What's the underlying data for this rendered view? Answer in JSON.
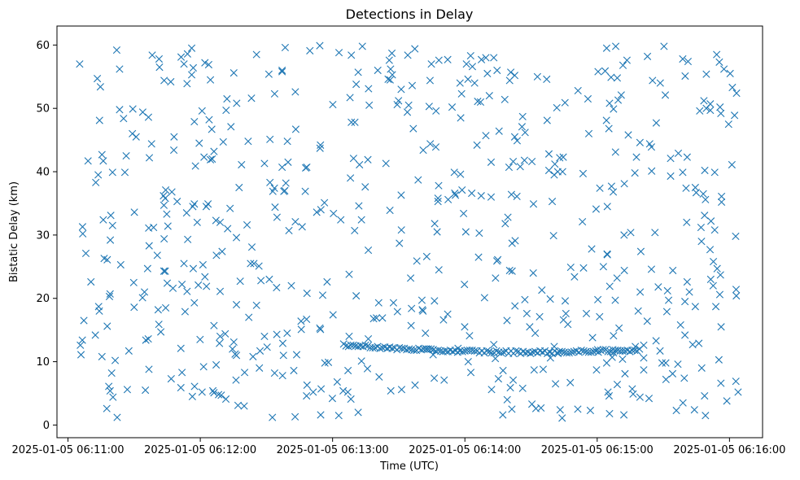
{
  "chart_data": {
    "type": "scatter",
    "title": "Detections in Delay",
    "xlabel": "Time (UTC)",
    "ylabel": "Bistatic Delay (km)",
    "x_axis_type": "datetime",
    "xlim": [
      "2025-01-05 06:10:55",
      "2025-01-05 06:16:15"
    ],
    "ylim": [
      -2,
      63
    ],
    "x_ticks": [
      "2025-01-05 06:11:00",
      "2025-01-05 06:12:00",
      "2025-01-05 06:13:00",
      "2025-01-05 06:14:00",
      "2025-01-05 06:15:00",
      "2025-01-05 06:16:00"
    ],
    "y_ticks": [
      0,
      10,
      20,
      30,
      40,
      50,
      60
    ],
    "grid": false,
    "legend": "none",
    "marker": "x",
    "series_color": "#1f77b4",
    "points": [],
    "track_points": []
  }
}
